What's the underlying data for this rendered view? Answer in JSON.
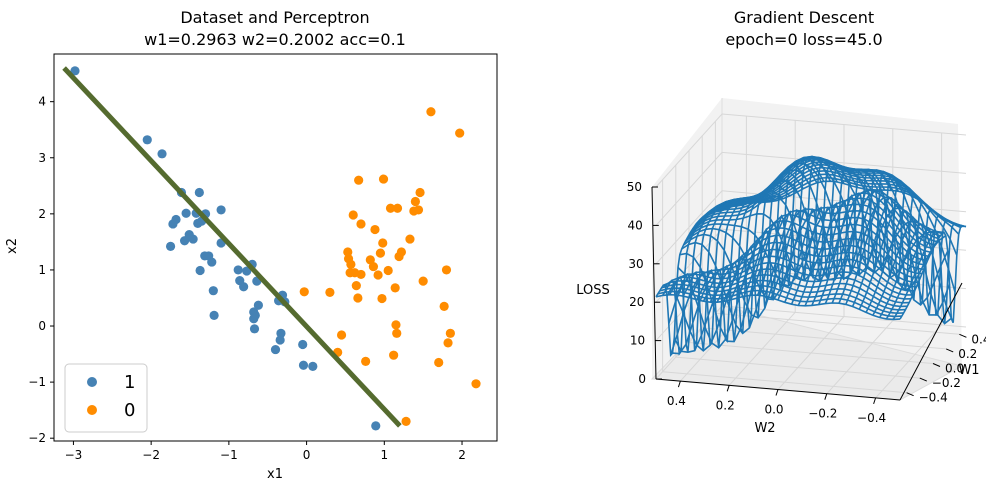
{
  "chart_data": [
    {
      "type": "scatter",
      "title_line1": "Dataset and Perceptron",
      "title_line2": "w1=0.2963 w2=0.2002 acc=0.1",
      "xlabel": "x1",
      "ylabel": "x2",
      "xlim": [
        -3.25,
        2.45
      ],
      "ylim": [
        -2.05,
        4.85
      ],
      "xticks": [
        -3,
        -2,
        -1,
        0,
        1,
        2
      ],
      "yticks": [
        -2,
        -1,
        0,
        1,
        2,
        3,
        4
      ],
      "legend_position": "lower-left",
      "series": [
        {
          "name": "1",
          "color": "#4682b4",
          "points": [
            [
              -2.98,
              4.55
            ],
            [
              -2.05,
              3.32
            ],
            [
              -1.86,
              3.07
            ],
            [
              -1.75,
              1.42
            ],
            [
              -1.72,
              1.82
            ],
            [
              -1.68,
              1.9
            ],
            [
              -1.61,
              2.38
            ],
            [
              -1.55,
              2.01
            ],
            [
              -1.57,
              1.52
            ],
            [
              -1.51,
              1.63
            ],
            [
              -1.46,
              1.55
            ],
            [
              -1.42,
              2.01
            ],
            [
              -1.38,
              2.38
            ],
            [
              -1.4,
              1.83
            ],
            [
              -1.35,
              1.87
            ],
            [
              -1.31,
              1.25
            ],
            [
              -1.3,
              2.0
            ],
            [
              -1.26,
              1.25
            ],
            [
              -1.22,
              1.14
            ],
            [
              -1.2,
              0.63
            ],
            [
              -1.19,
              0.19
            ],
            [
              -1.37,
              0.99
            ],
            [
              -1.1,
              2.07
            ],
            [
              -1.1,
              1.48
            ],
            [
              -0.88,
              1.0
            ],
            [
              -0.86,
              0.81
            ],
            [
              -0.81,
              0.7
            ],
            [
              -0.77,
              0.98
            ],
            [
              -0.7,
              1.1
            ],
            [
              -0.68,
              0.13
            ],
            [
              -0.66,
              0.19
            ],
            [
              -0.64,
              0.8
            ],
            [
              -0.62,
              0.37
            ],
            [
              -0.68,
              0.25
            ],
            [
              -0.67,
              -0.05
            ],
            [
              -0.4,
              -0.42
            ],
            [
              -0.36,
              0.45
            ],
            [
              -0.34,
              -0.25
            ],
            [
              -0.31,
              0.55
            ],
            [
              -0.28,
              0.43
            ],
            [
              -0.33,
              -0.13
            ],
            [
              -0.05,
              -0.33
            ],
            [
              -0.04,
              -0.7
            ],
            [
              0.08,
              -0.72
            ],
            [
              0.89,
              -1.78
            ]
          ]
        },
        {
          "name": "0",
          "color": "#ff8c00",
          "points": [
            [
              -0.03,
              0.61
            ],
            [
              0.3,
              0.6
            ],
            [
              0.4,
              -0.47
            ],
            [
              0.45,
              -0.16
            ],
            [
              0.53,
              1.32
            ],
            [
              0.54,
              1.2
            ],
            [
              0.56,
              0.95
            ],
            [
              0.57,
              1.1
            ],
            [
              0.6,
              1.98
            ],
            [
              0.62,
              0.95
            ],
            [
              0.64,
              0.72
            ],
            [
              0.66,
              0.5
            ],
            [
              0.67,
              2.6
            ],
            [
              0.7,
              0.92
            ],
            [
              0.7,
              1.82
            ],
            [
              0.76,
              -0.63
            ],
            [
              0.82,
              1.18
            ],
            [
              0.86,
              1.06
            ],
            [
              0.88,
              1.72
            ],
            [
              0.92,
              0.91
            ],
            [
              0.95,
              1.3
            ],
            [
              0.97,
              0.49
            ],
            [
              0.98,
              1.48
            ],
            [
              0.99,
              2.62
            ],
            [
              1.05,
              0.99
            ],
            [
              1.08,
              2.1
            ],
            [
              1.12,
              -0.52
            ],
            [
              1.14,
              0.68
            ],
            [
              1.15,
              0.02
            ],
            [
              1.16,
              -0.13
            ],
            [
              1.17,
              2.1
            ],
            [
              1.19,
              1.24
            ],
            [
              1.22,
              1.32
            ],
            [
              1.28,
              -1.7
            ],
            [
              1.33,
              1.55
            ],
            [
              1.38,
              2.05
            ],
            [
              1.4,
              2.22
            ],
            [
              1.44,
              2.07
            ],
            [
              1.46,
              2.38
            ],
            [
              1.5,
              0.8
            ],
            [
              1.6,
              3.82
            ],
            [
              1.7,
              -0.65
            ],
            [
              1.77,
              0.35
            ],
            [
              1.8,
              1.0
            ],
            [
              1.82,
              -0.3
            ],
            [
              1.85,
              -0.13
            ],
            [
              1.97,
              3.44
            ],
            [
              2.18,
              -1.03
            ]
          ]
        }
      ],
      "line": {
        "color": "#556b2f",
        "x": [
          -3.12,
          1.2
        ],
        "y": [
          4.6,
          -1.78
        ]
      }
    },
    {
      "type": "surface",
      "title_line1": "Gradient Descent",
      "title_line2": "epoch=0 loss=45.0",
      "xlabel": "W1",
      "ylabel": "W2",
      "zlabel": "LOSS",
      "color": "#1f77b4",
      "xlim": [
        -0.5,
        0.5
      ],
      "ylim": [
        -0.5,
        0.5
      ],
      "zlim": [
        0,
        50
      ],
      "w1_ticks": [
        "0.4",
        "0.2",
        "0.0",
        "−0.2",
        "−0.4"
      ],
      "w2_ticks": [
        "0.4",
        "0.2",
        "0.0",
        "−0.2",
        "−0.4"
      ],
      "z_ticks": [
        "0",
        "10",
        "20",
        "30",
        "40",
        "50"
      ],
      "grid": true
    }
  ],
  "legend": {
    "entries": [
      {
        "label": "1",
        "color": "#4682b4"
      },
      {
        "label": "0",
        "color": "#ff8c00"
      }
    ]
  }
}
